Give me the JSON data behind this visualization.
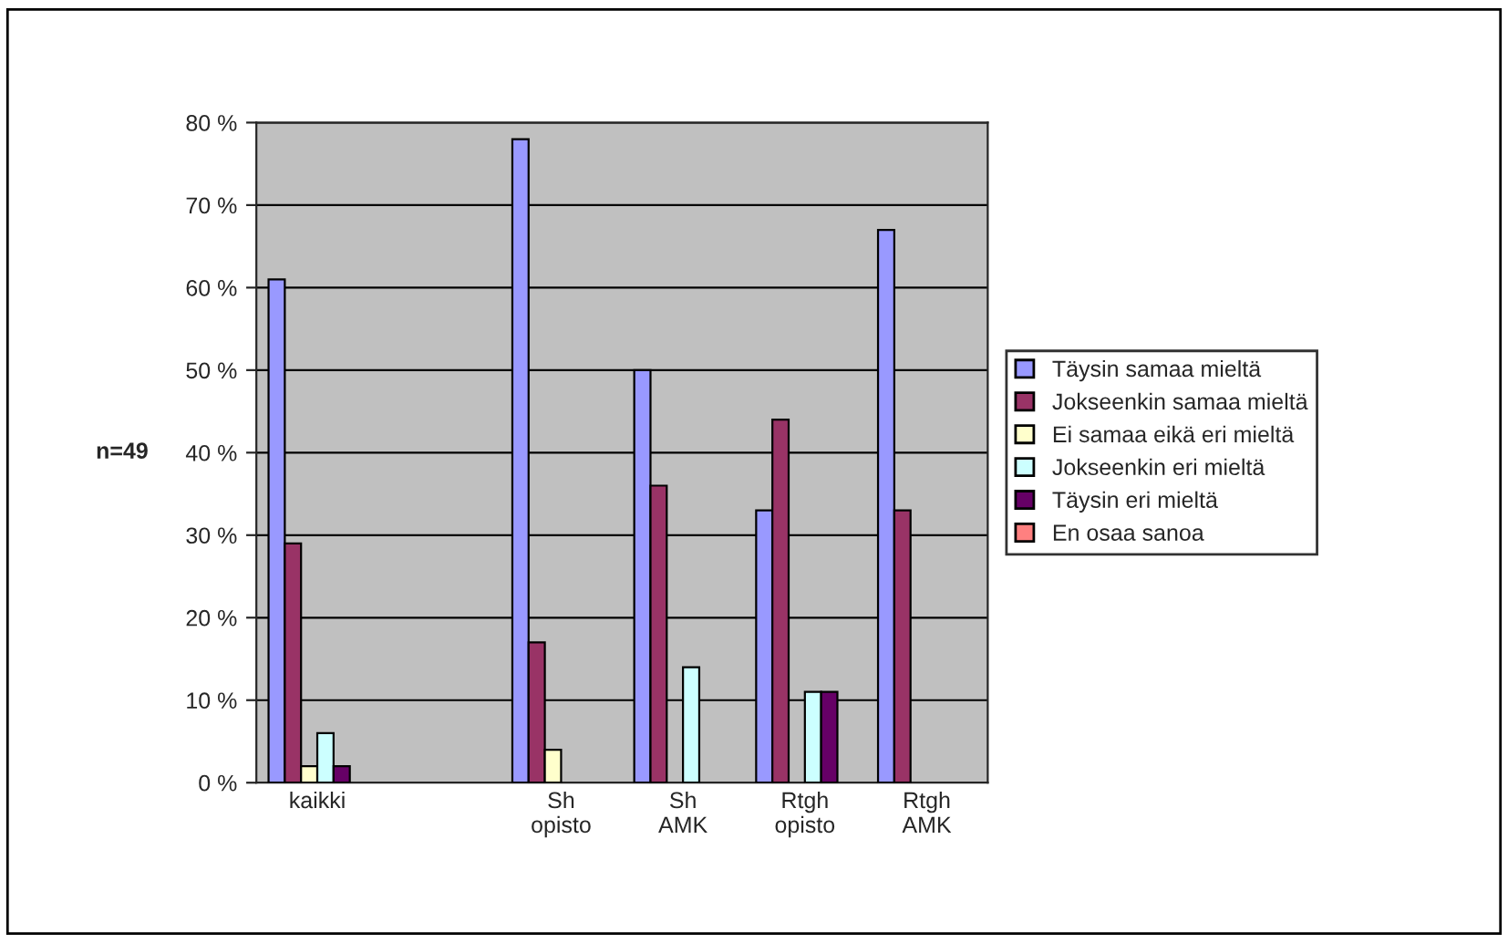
{
  "chart_data": {
    "type": "bar",
    "ylabel": "n=49",
    "categories": [
      "kaikki",
      null,
      "Sh\nopisto",
      "Sh\nAMK",
      "Rtgh\nopisto",
      "Rtgh\nAMK"
    ],
    "series": [
      {
        "name": "Täysin samaa mieltä",
        "color": "#9999ff",
        "values": [
          61,
          null,
          78,
          50,
          33,
          67
        ]
      },
      {
        "name": "Jokseenkin samaa mieltä",
        "color": "#993366",
        "values": [
          29,
          null,
          17,
          36,
          44,
          33
        ]
      },
      {
        "name": "Ei samaa eikä eri mieltä",
        "color": "#ffffcc",
        "values": [
          2,
          null,
          4,
          0,
          0,
          0
        ]
      },
      {
        "name": "Jokseenkin eri mieltä",
        "color": "#ccffff",
        "values": [
          6,
          null,
          0,
          14,
          11,
          0
        ]
      },
      {
        "name": "Täysin eri mieltä",
        "color": "#660066",
        "values": [
          2,
          null,
          0,
          0,
          11,
          0
        ]
      },
      {
        "name": "En osaa sanoa",
        "color": "#ff8080",
        "values": [
          0,
          null,
          0,
          0,
          0,
          0
        ]
      }
    ],
    "ylim": [
      0,
      80
    ],
    "yticks": [
      {
        "value": 0,
        "label": "0 %"
      },
      {
        "value": 10,
        "label": "10 %"
      },
      {
        "value": 20,
        "label": "20 %"
      },
      {
        "value": 30,
        "label": "30 %"
      },
      {
        "value": 40,
        "label": "40 %"
      },
      {
        "value": 50,
        "label": "50 %"
      },
      {
        "value": 60,
        "label": "60 %"
      },
      {
        "value": 70,
        "label": "70 %"
      },
      {
        "value": 80,
        "label": "80 %"
      }
    ],
    "grid": "y",
    "legend": "right"
  }
}
